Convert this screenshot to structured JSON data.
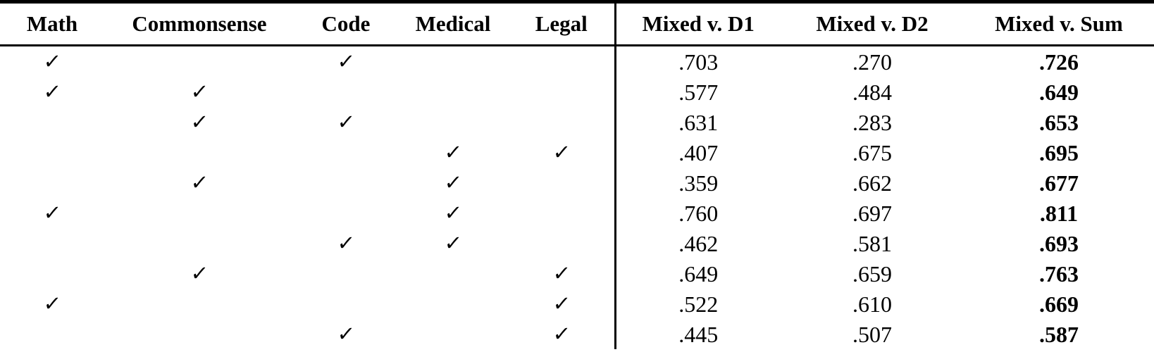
{
  "table": {
    "check_glyph": "✓",
    "domain_headers": [
      "Math",
      "Commonsense",
      "Code",
      "Medical",
      "Legal"
    ],
    "metric_headers": [
      "Mixed v. D1",
      "Mixed v. D2",
      "Mixed v. Sum"
    ],
    "rows": [
      {
        "checks": [
          "Math",
          "Code"
        ],
        "values": [
          ".703",
          ".270",
          ".726"
        ]
      },
      {
        "checks": [
          "Math",
          "Commonsense"
        ],
        "values": [
          ".577",
          ".484",
          ".649"
        ]
      },
      {
        "checks": [
          "Commonsense",
          "Code"
        ],
        "values": [
          ".631",
          ".283",
          ".653"
        ]
      },
      {
        "checks": [
          "Medical",
          "Legal"
        ],
        "values": [
          ".407",
          ".675",
          ".695"
        ]
      },
      {
        "checks": [
          "Commonsense",
          "Medical"
        ],
        "values": [
          ".359",
          ".662",
          ".677"
        ]
      },
      {
        "checks": [
          "Math",
          "Medical"
        ],
        "values": [
          ".760",
          ".697",
          ".811"
        ]
      },
      {
        "checks": [
          "Code",
          "Medical"
        ],
        "values": [
          ".462",
          ".581",
          ".693"
        ]
      },
      {
        "checks": [
          "Commonsense",
          "Legal"
        ],
        "values": [
          ".649",
          ".659",
          ".763"
        ]
      },
      {
        "checks": [
          "Math",
          "Legal"
        ],
        "values": [
          ".522",
          ".610",
          ".669"
        ]
      },
      {
        "checks": [
          "Code",
          "Legal"
        ],
        "values": [
          ".445",
          ".507",
          ".587"
        ]
      }
    ],
    "colors": {
      "text": "#000000",
      "background": "#ffffff",
      "rule": "#000000"
    }
  }
}
